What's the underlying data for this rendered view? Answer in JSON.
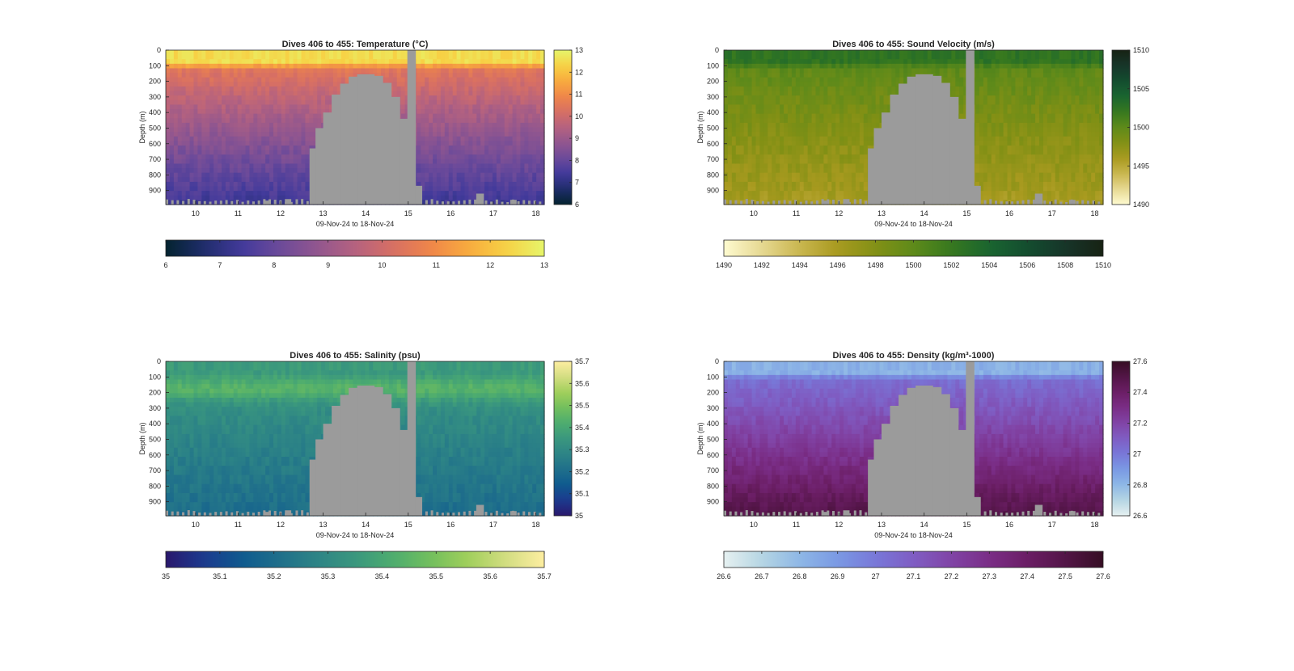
{
  "colors": {
    "mask": "#9b9b9b",
    "axis": "#262626",
    "background": "#ffffff"
  },
  "xaxis_label": "09-Nov-24 to 18-Nov-24",
  "ylabel": "Depth (m)",
  "chart_data": [
    {
      "type": "heatmap",
      "title": "Dives 406 to 455: Temperature (°C)",
      "variable": "temperature",
      "xlabel": "09-Nov-24 to 18-Nov-24",
      "ylabel": "Depth (m)",
      "x_range": [
        9.3,
        18.2
      ],
      "x_ticks": [
        "10",
        "11",
        "12",
        "13",
        "14",
        "15",
        "16",
        "17",
        "18"
      ],
      "y_range": [
        0,
        990
      ],
      "y_reversed": true,
      "y_ticks": [
        "0",
        "100",
        "200",
        "300",
        "400",
        "500",
        "600",
        "700",
        "800",
        "900"
      ],
      "clim": [
        6,
        13
      ],
      "colormap": "thermal",
      "colorbar_ticks": [
        "6",
        "7",
        "8",
        "9",
        "10",
        "11",
        "12",
        "13"
      ],
      "h_colorbar_ticks": [
        "6",
        "7",
        "8",
        "9",
        "10",
        "11",
        "12",
        "13"
      ],
      "profile": {
        "surface": 12.5,
        "mixed_layer_depth": 90,
        "bottom": 7.3
      }
    },
    {
      "type": "heatmap",
      "title": "Dives 406 to 455: Sound Velocity (m/s)",
      "variable": "sound_velocity",
      "xlabel": "09-Nov-24 to 18-Nov-24",
      "ylabel": "Depth (m)",
      "x_range": [
        9.3,
        18.2
      ],
      "x_ticks": [
        "10",
        "11",
        "12",
        "13",
        "14",
        "15",
        "16",
        "17",
        "18"
      ],
      "y_range": [
        0,
        990
      ],
      "y_reversed": true,
      "y_ticks": [
        "0",
        "100",
        "200",
        "300",
        "400",
        "500",
        "600",
        "700",
        "800",
        "900"
      ],
      "clim": [
        1490,
        1510
      ],
      "colormap": "speed",
      "colorbar_ticks": [
        "1490",
        "1495",
        "1500",
        "1505",
        "1510"
      ],
      "h_colorbar_ticks": [
        "1490",
        "1492",
        "1494",
        "1496",
        "1498",
        "1500",
        "1502",
        "1504",
        "1506",
        "1508",
        "1510"
      ],
      "profile": {
        "surface": 1502.5,
        "mixed_layer_depth": 90,
        "bottom": 1496
      }
    },
    {
      "type": "heatmap",
      "title": "Dives 406 to 455: Salinity (psu)",
      "variable": "salinity",
      "xlabel": "09-Nov-24 to 18-Nov-24",
      "ylabel": "Depth (m)",
      "x_range": [
        9.3,
        18.2
      ],
      "x_ticks": [
        "10",
        "11",
        "12",
        "13",
        "14",
        "15",
        "16",
        "17",
        "18"
      ],
      "y_range": [
        0,
        990
      ],
      "y_reversed": true,
      "y_ticks": [
        "0",
        "100",
        "200",
        "300",
        "400",
        "500",
        "600",
        "700",
        "800",
        "900"
      ],
      "clim": [
        35.0,
        35.7
      ],
      "colormap": "haline",
      "colorbar_ticks": [
        "35",
        "35.1",
        "35.2",
        "35.3",
        "35.4",
        "35.5",
        "35.6",
        "35.7"
      ],
      "h_colorbar_ticks": [
        "35",
        "35.1",
        "35.2",
        "35.3",
        "35.4",
        "35.5",
        "35.6",
        "35.7"
      ],
      "profile": {
        "surface": 35.36,
        "mixed_layer_depth": 90,
        "subsurface_max": 35.46,
        "bottom": 35.2
      }
    },
    {
      "type": "heatmap",
      "title": "Dives 406 to 455: Density (kg/m³-1000)",
      "variable": "density",
      "xlabel": "09-Nov-24 to 18-Nov-24",
      "ylabel": "Depth (m)",
      "x_range": [
        9.3,
        18.2
      ],
      "x_ticks": [
        "10",
        "11",
        "12",
        "13",
        "14",
        "15",
        "16",
        "17",
        "18"
      ],
      "y_range": [
        0,
        990
      ],
      "y_reversed": true,
      "y_ticks": [
        "0",
        "100",
        "200",
        "300",
        "400",
        "500",
        "600",
        "700",
        "800",
        "900"
      ],
      "clim": [
        26.6,
        27.6
      ],
      "colormap": "dense",
      "colorbar_ticks": [
        "26.6",
        "26.8",
        "27",
        "27.2",
        "27.4",
        "27.6"
      ],
      "h_colorbar_ticks": [
        "26.6",
        "26.7",
        "26.8",
        "26.9",
        "27",
        "27.1",
        "27.2",
        "27.3",
        "27.4",
        "27.5",
        "27.6"
      ],
      "profile": {
        "surface": 26.82,
        "mixed_layer_depth": 90,
        "bottom": 27.5
      }
    }
  ],
  "no_data_mask": {
    "dome": [
      {
        "x0": 12.68,
        "x1": 12.82,
        "top": 630
      },
      {
        "x0": 12.82,
        "x1": 13.0,
        "top": 500
      },
      {
        "x0": 13.0,
        "x1": 13.2,
        "top": 400
      },
      {
        "x0": 13.2,
        "x1": 13.4,
        "top": 285
      },
      {
        "x0": 13.4,
        "x1": 13.6,
        "top": 215
      },
      {
        "x0": 13.6,
        "x1": 13.8,
        "top": 170
      },
      {
        "x0": 13.8,
        "x1": 14.2,
        "top": 155
      },
      {
        "x0": 14.2,
        "x1": 14.4,
        "top": 165
      },
      {
        "x0": 14.4,
        "x1": 14.6,
        "top": 210
      },
      {
        "x0": 14.6,
        "x1": 14.8,
        "top": 300
      },
      {
        "x0": 14.8,
        "x1": 14.98,
        "top": 440
      },
      {
        "x0": 14.98,
        "x1": 15.17,
        "top": 0
      },
      {
        "x0": 15.17,
        "x1": 15.32,
        "top": 870
      }
    ],
    "spikes": [
      {
        "x0": 11.6,
        "x1": 11.75,
        "top": 965
      },
      {
        "x0": 12.1,
        "x1": 12.25,
        "top": 955
      },
      {
        "x0": 16.6,
        "x1": 16.78,
        "top": 920
      },
      {
        "x0": 17.4,
        "x1": 17.55,
        "top": 960
      }
    ]
  }
}
